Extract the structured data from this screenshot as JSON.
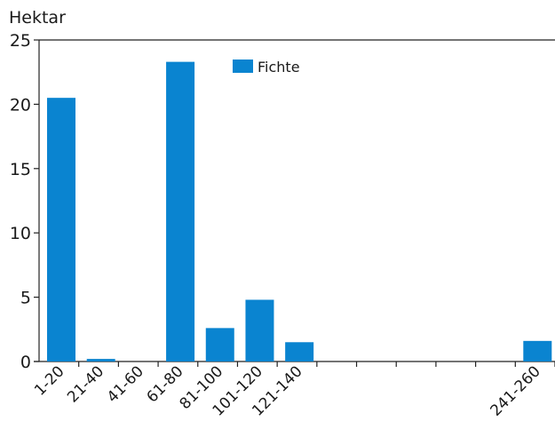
{
  "chart_data": {
    "type": "bar",
    "ylabel": "Hektar",
    "xlabel": "",
    "ylim": [
      0,
      25
    ],
    "yticks": [
      0,
      5,
      10,
      15,
      20,
      25
    ],
    "grid": false,
    "legend_position": "top-center",
    "categories": [
      "1-20",
      "21-40",
      "41-60",
      "61-80",
      "81-100",
      "101-120",
      "121-140",
      "",
      "",
      "",
      "",
      "",
      "241-260"
    ],
    "series": [
      {
        "name": "Fichte",
        "color": "#0a84d0",
        "values": [
          20.5,
          0.2,
          0,
          23.3,
          2.6,
          4.8,
          1.5,
          0,
          0,
          0,
          0,
          0,
          1.6
        ]
      }
    ]
  }
}
